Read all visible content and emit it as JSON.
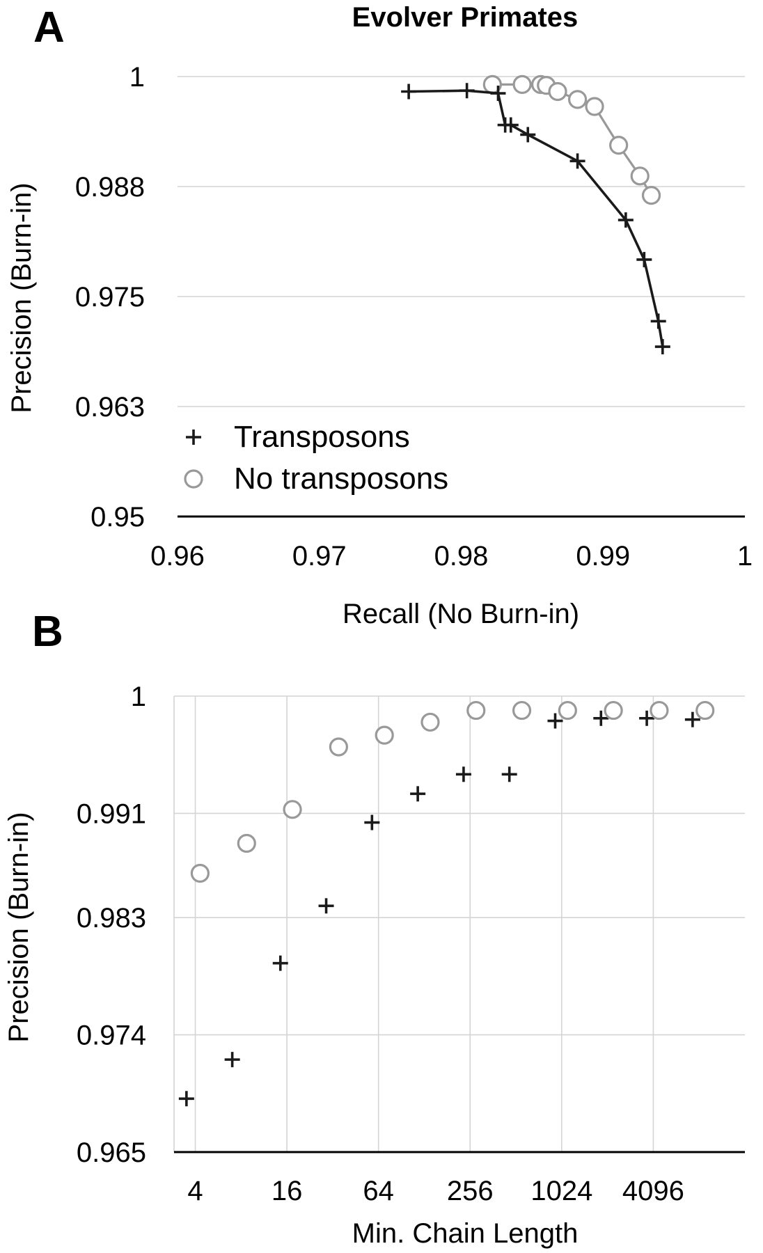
{
  "figure": {
    "panel_a_letter": "A",
    "panel_b_letter": "B",
    "legend": {
      "transposons": "Transposons",
      "no_transposons": "No transposons"
    }
  },
  "colors": {
    "transposons": "#1a1a1a",
    "no_transposons": "#999999",
    "grid": "#d4d4d4"
  },
  "chart_data": [
    {
      "panel": "A",
      "type": "line",
      "title": "Evolver Primates",
      "xlabel": "Recall (No Burn-in)",
      "ylabel": "Precision (Burn-in)",
      "xlim": [
        0.96,
        1
      ],
      "ylim": [
        0.95,
        1
      ],
      "xticks": [
        "0.96",
        "0.97",
        "0.98",
        "0.99",
        "1"
      ],
      "yticks": [
        "0.95",
        "0.963",
        "0.975",
        "0.988",
        "1"
      ],
      "ytick_values": [
        0.95,
        0.9625,
        0.975,
        0.9875,
        1
      ],
      "grid": "horizontal",
      "legend_position": "bottom-left",
      "series": [
        {
          "name": "Transposons",
          "marker": "plus",
          "points": [
            [
              0.9763,
              0.9983
            ],
            [
              0.9804,
              0.9984
            ],
            [
              0.9826,
              0.9981
            ],
            [
              0.9831,
              0.9945
            ],
            [
              0.9835,
              0.9945
            ],
            [
              0.9847,
              0.9934
            ],
            [
              0.9882,
              0.9904
            ],
            [
              0.9916,
              0.9837
            ],
            [
              0.9929,
              0.9792
            ],
            [
              0.9939,
              0.9722
            ],
            [
              0.9942,
              0.9693
            ]
          ]
        },
        {
          "name": "No transposons",
          "marker": "circle",
          "points": [
            [
              0.9822,
              0.9991
            ],
            [
              0.9843,
              0.9991
            ],
            [
              0.9856,
              0.9991
            ],
            [
              0.986,
              0.999
            ],
            [
              0.9868,
              0.9983
            ],
            [
              0.9882,
              0.9974
            ],
            [
              0.9894,
              0.9966
            ],
            [
              0.9911,
              0.9922
            ],
            [
              0.9926,
              0.9887
            ],
            [
              0.9934,
              0.9865
            ]
          ]
        }
      ]
    },
    {
      "panel": "B",
      "type": "scatter",
      "title": "",
      "xlabel": "Min. Chain Length",
      "ylabel": "Precision (Burn-in)",
      "xscale": "log2",
      "xlim": [
        2.9,
        16384
      ],
      "ylim": [
        0.965,
        1
      ],
      "xticks": [
        "4",
        "16",
        "64",
        "256",
        "1024",
        "4096"
      ],
      "xtick_values": [
        4,
        16,
        64,
        256,
        1024,
        4096
      ],
      "yticks": [
        "0.965",
        "0.974",
        "0.983",
        "0.991",
        "1"
      ],
      "ytick_values": [
        0.965,
        0.974,
        0.983,
        0.991,
        1
      ],
      "grid": "both",
      "series": [
        {
          "name": "Transposons",
          "marker": "plus",
          "points": [
            [
              3.5,
              0.9691
            ],
            [
              7,
              0.9721
            ],
            [
              14.5,
              0.9795
            ],
            [
              29,
              0.9839
            ],
            [
              58,
              0.9903
            ],
            [
              116,
              0.9925
            ],
            [
              232,
              0.994
            ],
            [
              464,
              0.994
            ],
            [
              928,
              0.9981
            ],
            [
              1856,
              0.9983
            ],
            [
              3712,
              0.9983
            ],
            [
              7424,
              0.9982
            ]
          ]
        },
        {
          "name": "No transposons",
          "marker": "circle",
          "points": [
            [
              4.3,
              0.9864
            ],
            [
              8.7,
              0.9887
            ],
            [
              17.4,
              0.9913
            ],
            [
              35,
              0.9961
            ],
            [
              70,
              0.997
            ],
            [
              140,
              0.998
            ],
            [
              280,
              0.9989
            ],
            [
              560,
              0.9989
            ],
            [
              1120,
              0.9989
            ],
            [
              2240,
              0.9989
            ],
            [
              4480,
              0.9989
            ],
            [
              8960,
              0.9989
            ]
          ]
        }
      ]
    }
  ]
}
